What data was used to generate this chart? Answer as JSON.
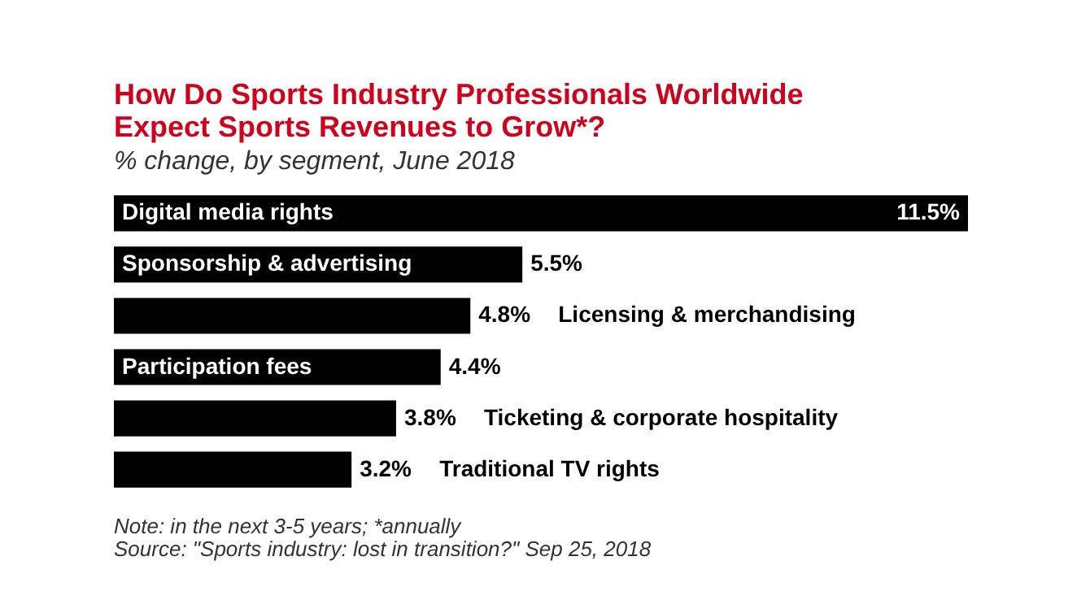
{
  "chart_data": {
    "type": "bar",
    "orientation": "horizontal",
    "title": "How Do Sports Industry Professionals Worldwide Expect Sports Revenues to Grow*?",
    "subtitle": "% change, by segment, June 2018",
    "categories": [
      "Digital media rights",
      "Sponsorship & advertising",
      "Licensing & merchandising",
      "Participation fees",
      "Ticketing & corporate hospitality",
      "Traditional TV rights"
    ],
    "values": [
      11.5,
      5.5,
      4.8,
      4.4,
      3.8,
      3.2
    ],
    "value_labels": [
      "11.5%",
      "5.5%",
      "4.8%",
      "4.4%",
      "3.8%",
      "3.2%"
    ],
    "color": "#000000",
    "annotations": [
      "Note: in the next 3-5 years; *annually",
      "Source: \"Sports industry: lost in transition?\" Sep 25, 2018"
    ]
  }
}
